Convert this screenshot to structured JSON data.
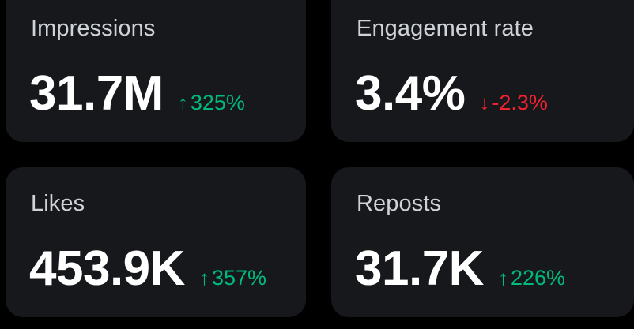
{
  "colors": {
    "background": "#000000",
    "card": "#16181c",
    "label": "#cfd3d8",
    "value": "#ffffff",
    "positive": "#00ba7c",
    "negative": "#f4212e"
  },
  "cards": [
    {
      "label": "Impressions",
      "value": "31.7M",
      "delta": "325%",
      "direction": "up",
      "delta_icon": "arrow-up-icon"
    },
    {
      "label": "Engagement rate",
      "value": "3.4%",
      "delta": "-2.3%",
      "direction": "down",
      "delta_icon": "arrow-down-icon"
    },
    {
      "label": "Likes",
      "value": "453.9K",
      "delta": "357%",
      "direction": "up",
      "delta_icon": "arrow-up-icon"
    },
    {
      "label": "Reposts",
      "value": "31.7K",
      "delta": "226%",
      "direction": "up",
      "delta_icon": "arrow-up-icon"
    }
  ]
}
